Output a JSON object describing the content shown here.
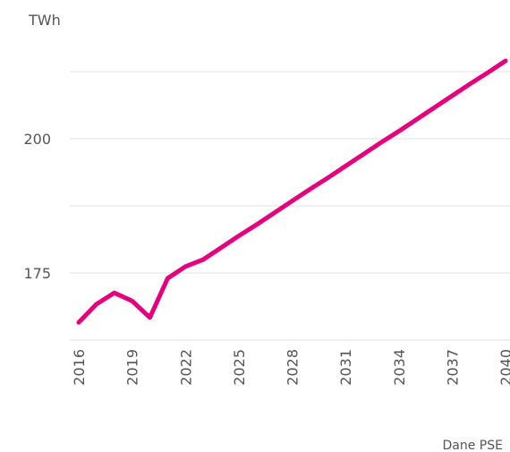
{
  "chart_data": {
    "type": "line",
    "title": "TWh",
    "source": "Dane PSE",
    "x": [
      2016,
      2017,
      2018,
      2019,
      2020,
      2021,
      2022,
      2023,
      2024,
      2025,
      2026,
      2027,
      2028,
      2029,
      2030,
      2031,
      2032,
      2033,
      2034,
      2035,
      2036,
      2037,
      2038,
      2039,
      2040
    ],
    "series": [
      {
        "name": "TWh",
        "color": "#e5007d",
        "values": [
          165.8,
          169.2,
          171.3,
          169.8,
          166.7,
          174.0,
          176.2,
          177.5,
          179.7,
          181.9,
          184.0,
          186.2,
          188.4,
          190.6,
          192.7,
          194.9,
          197.1,
          199.3,
          201.4,
          203.6,
          205.8,
          208.0,
          210.2,
          212.3,
          214.5
        ]
      }
    ],
    "xlim": [
      2016,
      2040
    ],
    "xticks": [
      2016,
      2019,
      2022,
      2025,
      2028,
      2031,
      2034,
      2037,
      2040
    ],
    "ylim": [
      162.5,
      215
    ],
    "yticks": [
      175,
      200
    ],
    "minor_yticks": [
      162.5,
      187.5,
      212.5
    ],
    "grid": true
  }
}
